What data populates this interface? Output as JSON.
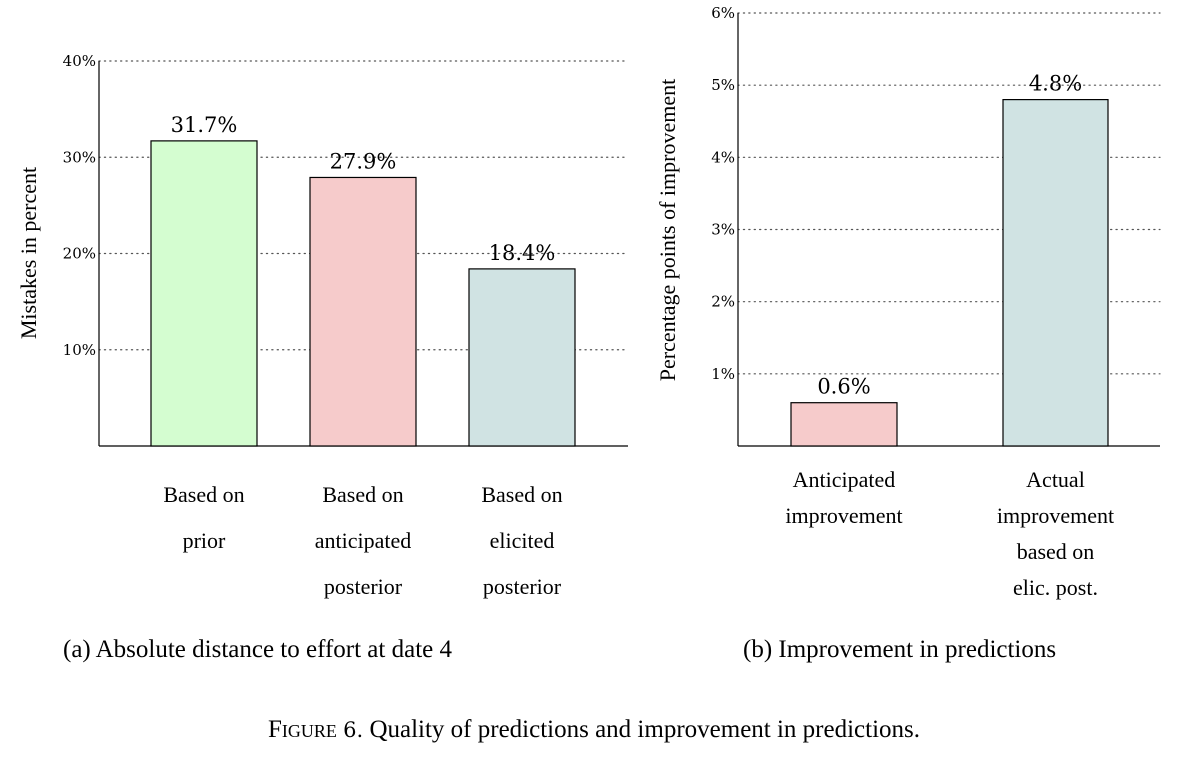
{
  "figure_caption": {
    "prefix": "Figure",
    "number": "6.",
    "text": "Quality of predictions and improvement in predictions."
  },
  "chart_data": [
    {
      "type": "bar",
      "caption": "(a) Absolute distance to effort at date 4",
      "ylabel": "Mistakes in percent",
      "categories": [
        [
          "Based on",
          "prior"
        ],
        [
          "Based on",
          "anticipated",
          "posterior"
        ],
        [
          "Based on",
          "elicited",
          "posterior"
        ]
      ],
      "values": [
        31.7,
        27.9,
        18.4
      ],
      "data_labels": [
        "31.7%",
        "27.9%",
        "18.4%"
      ],
      "colors": [
        "#d4fdd0",
        "#f6cbcb",
        "#d0e3e3"
      ],
      "ylim": [
        0,
        40
      ],
      "yticks": [
        10,
        20,
        30,
        40
      ],
      "ytick_labels": [
        "10%",
        "20%",
        "30%",
        "40%"
      ],
      "grid": true
    },
    {
      "type": "bar",
      "caption": "(b) Improvement in predictions",
      "ylabel": "Percentage points of improvement",
      "categories": [
        [
          "Anticipated",
          "improvement"
        ],
        [
          "Actual",
          "improvement",
          "based on",
          "elic. post."
        ]
      ],
      "values": [
        0.6,
        4.8
      ],
      "data_labels": [
        "0.6%",
        "4.8%"
      ],
      "colors": [
        "#f6cbcb",
        "#d0e3e3"
      ],
      "ylim": [
        0,
        6
      ],
      "yticks": [
        1,
        2,
        3,
        4,
        5,
        6
      ],
      "ytick_labels": [
        "1%",
        "2%",
        "3%",
        "4%",
        "5%",
        "6%"
      ],
      "grid": true
    }
  ]
}
